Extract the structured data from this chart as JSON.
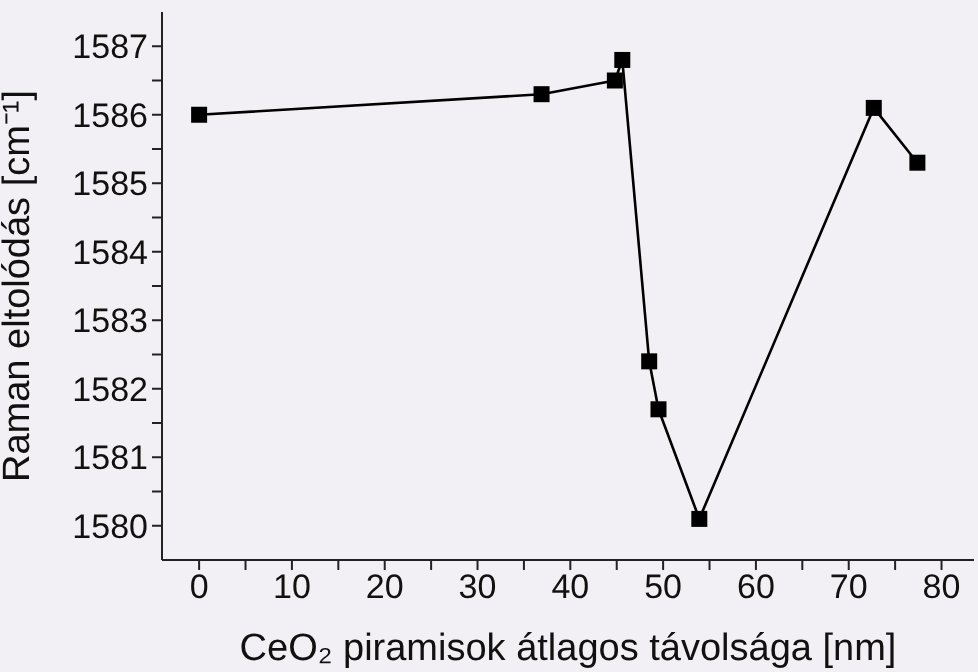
{
  "chart_data": {
    "type": "line",
    "xlabel": "CeO₂ piramisok átlagos távolsága [nm]",
    "ylabel": "Raman eltolódás [cm⁻¹]",
    "series": [
      {
        "color": "#000000",
        "x": [
          0,
          36.9,
          44.8,
          45.6,
          48.5,
          49.5,
          53.9,
          72.7,
          77.4
        ],
        "values": [
          1586.0,
          1586.3,
          1586.5,
          1586.8,
          1582.4,
          1581.7,
          1580.1,
          1586.1,
          1585.3
        ]
      }
    ],
    "xlim": [
      -4,
      83.5
    ],
    "ylim": [
      1579.5,
      1587.5
    ],
    "xticks": [
      0,
      {
        "value": 5,
        "label": null
      },
      10,
      {
        "value": 15,
        "label": null
      },
      20,
      {
        "value": 25,
        "label": null
      },
      30,
      {
        "value": 35,
        "label": null
      },
      40,
      {
        "value": 45,
        "label": null
      },
      50,
      {
        "value": 55,
        "label": null
      },
      60,
      {
        "value": 65,
        "label": null
      },
      70,
      {
        "value": 75,
        "label": null
      },
      80
    ],
    "yticks": [
      1580,
      {
        "value": 1580.5,
        "label": null
      },
      1581,
      {
        "value": 1581.5,
        "label": null
      },
      1582,
      {
        "value": 1582.5,
        "label": null
      },
      1583,
      {
        "value": 1583.5,
        "label": null
      },
      1584,
      {
        "value": 1584.5,
        "label": null
      },
      1585,
      {
        "value": 1585.5,
        "label": null
      },
      1586,
      {
        "value": 1586.5,
        "label": null
      },
      1587
    ],
    "grid": false,
    "legend": false,
    "marker": "square",
    "line_style": "solid"
  }
}
